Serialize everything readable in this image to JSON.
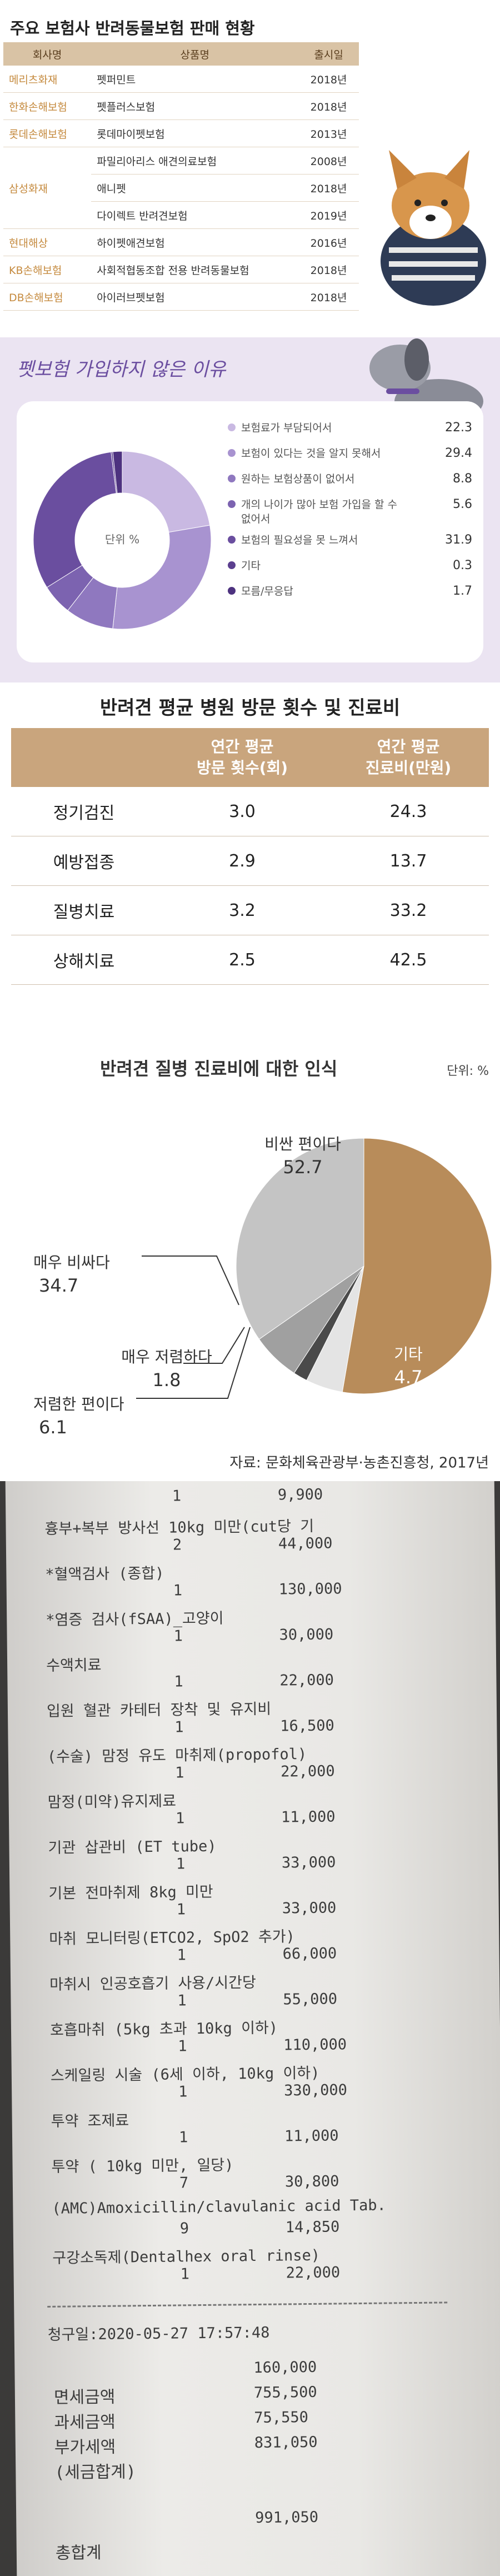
{
  "insurance_table": {
    "title": "주요 보험사 반려동물보험 판매 현황",
    "headers": [
      "회사명",
      "상품명",
      "출시일"
    ],
    "companies": [
      {
        "name": "메리츠화재",
        "products": [
          {
            "name": "펫퍼민트",
            "year": "2018년"
          }
        ]
      },
      {
        "name": "한화손해보험",
        "products": [
          {
            "name": "펫플러스보험",
            "year": "2018년"
          }
        ]
      },
      {
        "name": "롯데손해보험",
        "products": [
          {
            "name": "롯데마이펫보험",
            "year": "2013년"
          }
        ]
      },
      {
        "name": "삼성화재",
        "products": [
          {
            "name": "파밀리아리스 애견의료보험",
            "year": "2008년"
          },
          {
            "name": "애니펫",
            "year": "2018년"
          },
          {
            "name": "다이렉트 반려견보험",
            "year": "2019년"
          }
        ]
      },
      {
        "name": "현대해상",
        "products": [
          {
            "name": "하이펫애견보험",
            "year": "2016년"
          }
        ]
      },
      {
        "name": "KB손해보험",
        "products": [
          {
            "name": "사회적협동조합 전용 반려동물보험",
            "year": "2018년"
          }
        ]
      },
      {
        "name": "DB손해보험",
        "products": [
          {
            "name": "아이러브펫보험",
            "year": "2018년"
          }
        ]
      }
    ]
  },
  "reasons_chart": {
    "type": "donut",
    "title": "펫보험 가입하지 않은 이유",
    "center_label": "단위 %",
    "categories": [
      "보험료가 부담되어서",
      "보험이 있다는 것을 알지 못해서",
      "원하는 보험상품이 없어서",
      "개의 나이가 많아 보험 가입을 할 수 없어서",
      "보험의 필요성을 못 느껴서",
      "기타",
      "모름/무응답"
    ],
    "values": [
      22.3,
      29.4,
      8.8,
      5.6,
      31.9,
      0.3,
      1.7
    ],
    "colors": [
      "#c9b9e2",
      "#a893d0",
      "#8f78bf",
      "#7c63b0",
      "#6a4e9f",
      "#5b3f8f",
      "#4d327f"
    ]
  },
  "cost_table": {
    "title": "반려견 평균 병원 방문 횟수 및 진료비",
    "headers": [
      [
        "연간 평균",
        "방문 횟수(회)"
      ],
      [
        "연간 평균",
        "진료비(만원)"
      ]
    ],
    "rows": [
      {
        "label": "정기검진",
        "cells": [
          "3.0",
          "24.3"
        ]
      },
      {
        "label": "예방접종",
        "cells": [
          "2.9",
          "13.7"
        ]
      },
      {
        "label": "질병치료",
        "cells": [
          "3.2",
          "33.2"
        ]
      },
      {
        "label": "상해치료",
        "cells": [
          "2.5",
          "42.5"
        ]
      }
    ]
  },
  "perception_chart": {
    "type": "pie",
    "title": "반려견 질병 진료비에 대한 인식",
    "unit": "단위: %",
    "categories": [
      "비싼 편이다",
      "기타",
      "매우 저렴하다",
      "저렴한 편이다",
      "매우 비싸다"
    ],
    "values": [
      52.7,
      4.7,
      1.8,
      6.1,
      34.7
    ],
    "colors": [
      "#b88c5a",
      "#e4e4e4",
      "#4a4a4a",
      "#a0a0a0",
      "#c4c4c4"
    ],
    "source": "자료: 문화체육관광부·농촌진흥청, 2017년"
  },
  "receipt": {
    "first_line": {
      "qty": "1",
      "amount": "9,900"
    },
    "items": [
      {
        "name": "흉부+복부 방사선 10kg 미만(cut당 기",
        "qty": "2",
        "amount": "44,000"
      },
      {
        "name": "*혈액검사 (종합)",
        "qty": "1",
        "amount": "130,000"
      },
      {
        "name": "*염증 검사(fSAA)_고양이",
        "qty": "1",
        "amount": "30,000"
      },
      {
        "name": "수액치료",
        "qty": "1",
        "amount": "22,000"
      },
      {
        "name": "입원 혈관 카테터 장착 및 유지비",
        "qty": "1",
        "amount": "16,500"
      },
      {
        "name": "(수술) 맘정 유도 마취제(propofol)",
        "qty": "1",
        "amount": "22,000"
      },
      {
        "name": "맘정(미약)유지제료",
        "qty": "1",
        "amount": "11,000"
      },
      {
        "name": "기관 삽관비 (ET tube)",
        "qty": "1",
        "amount": "33,000"
      },
      {
        "name": "기본 전마취제 8kg 미만",
        "qty": "1",
        "amount": "33,000"
      },
      {
        "name": "마취 모니터링(ETCO2, SpO2 추가)",
        "qty": "1",
        "amount": "66,000"
      },
      {
        "name": "마취시 인공호흡기 사용/시간당",
        "qty": "1",
        "amount": "55,000"
      },
      {
        "name": "호흡마취 (5kg 초과 10kg 이하)",
        "qty": "1",
        "amount": "110,000"
      },
      {
        "name": "스케일링 시술 (6세 이하, 10kg 이하)",
        "qty": "1",
        "amount": "330,000"
      },
      {
        "name": "투약 조제료",
        "qty": "1",
        "amount": "11,000"
      },
      {
        "name": "투약 ( 10kg 미만, 일당)",
        "qty": "7",
        "amount": "30,800"
      },
      {
        "name": "(AMC)Amoxicillin/clavulanic acid Tab.",
        "qty": "9",
        "amount": "14,850"
      },
      {
        "name": "구강소독제(Dentalhex oral rinse)",
        "qty": "1",
        "amount": "22,000"
      }
    ],
    "date": "청구일:2020-05-27 17:57:48",
    "summary_labels": [
      "면세금액",
      "과세금액",
      "부가세액",
      "(세금합계)",
      "총합계"
    ],
    "summary_values": [
      "160,000",
      "755,500",
      "75,550",
      "831,050",
      "991,050"
    ]
  }
}
